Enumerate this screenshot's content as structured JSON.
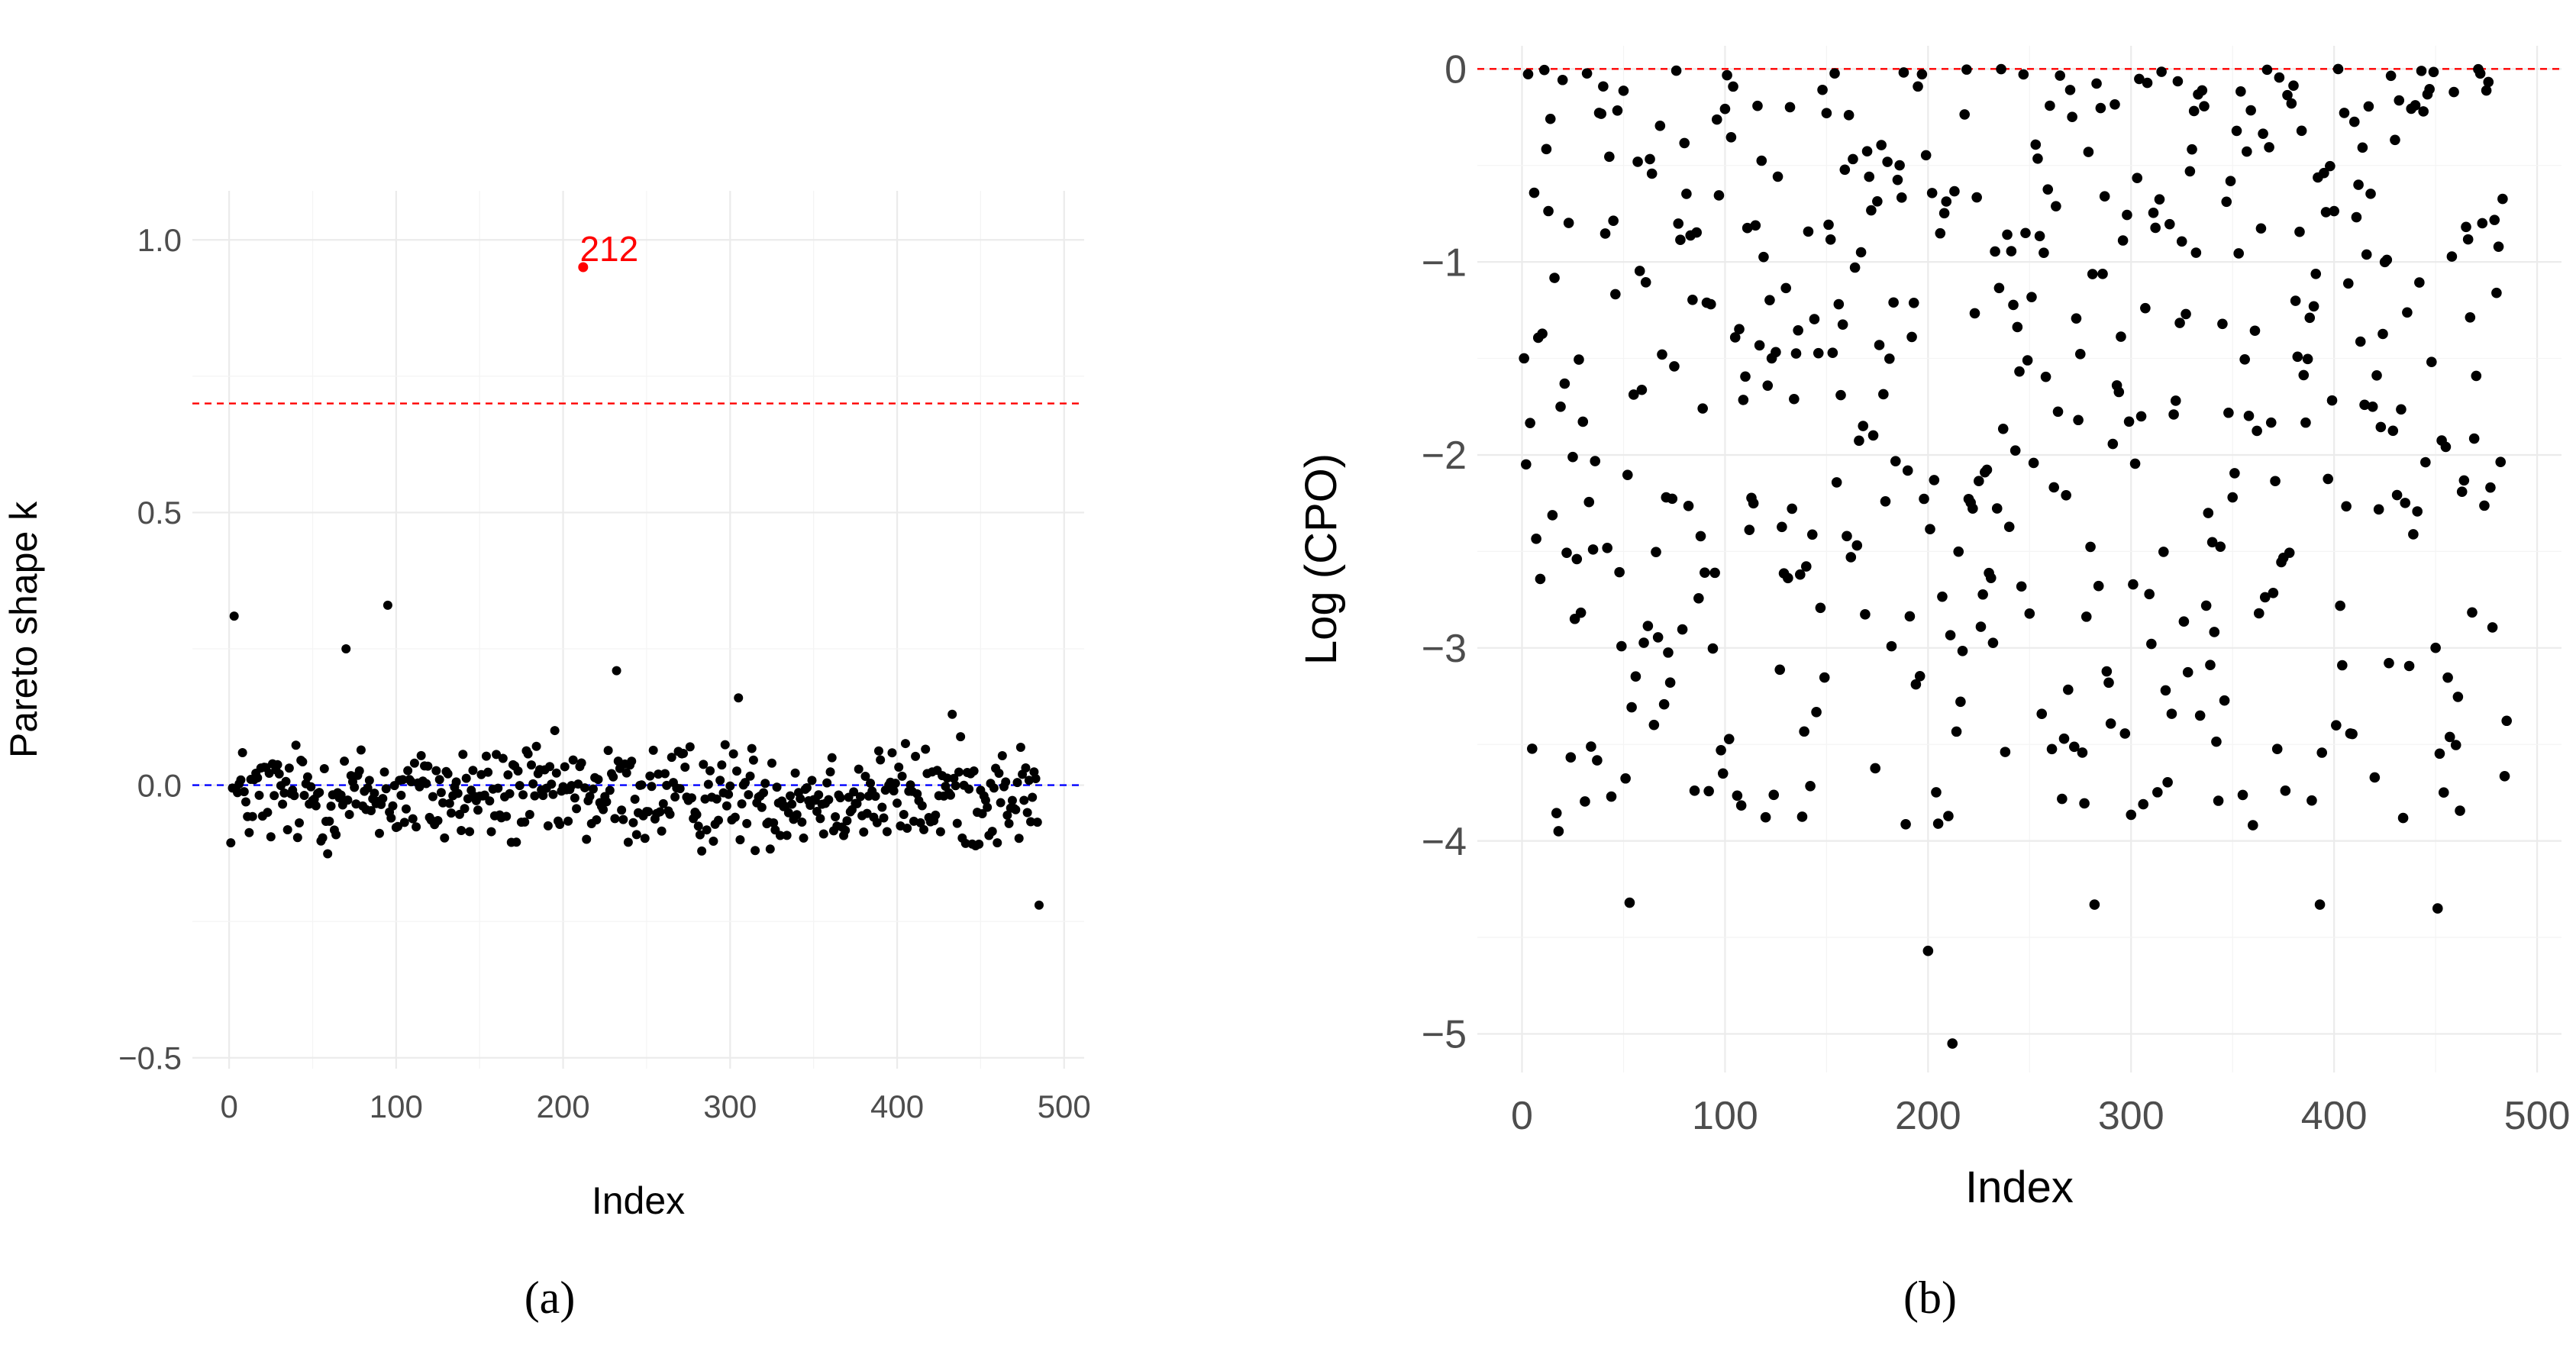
{
  "captions": {
    "a": "(a)",
    "b": "(b)"
  },
  "chart_data": [
    {
      "panel": "a",
      "type": "scatter",
      "xlabel": "Index",
      "ylabel": "Pareto shape k",
      "xlim": [
        -22,
        512
      ],
      "ylim": [
        -0.52,
        1.09
      ],
      "x_ticks": [
        "0",
        "100",
        "200",
        "300",
        "400",
        "500"
      ],
      "y_ticks": [
        "−0.5",
        "0.0",
        "0.5",
        "1.0"
      ],
      "grid": true,
      "reference_lines": [
        {
          "y": 0.7,
          "color": "#ff0000",
          "style": "dashed"
        },
        {
          "y": 0.0,
          "color": "#0000ff",
          "style": "dashed"
        }
      ],
      "highlight": {
        "x": 212,
        "y": 0.95,
        "label": "212",
        "color": "#ff0000"
      },
      "n_points": 485,
      "point_color": "#000000",
      "notable_points": [
        {
          "x": 3,
          "y": 0.31
        },
        {
          "x": 70,
          "y": 0.25
        },
        {
          "x": 95,
          "y": 0.33
        },
        {
          "x": 232,
          "y": 0.21
        },
        {
          "x": 305,
          "y": 0.16
        },
        {
          "x": 433,
          "y": 0.13
        },
        {
          "x": 485,
          "y": -0.22
        }
      ],
      "bulk_range": [
        -0.16,
        0.12
      ]
    },
    {
      "panel": "b",
      "type": "scatter",
      "xlabel": "Index",
      "ylabel": "Log (CPO)",
      "xlim": [
        -22,
        512
      ],
      "ylim": [
        -5.2,
        0.12
      ],
      "x_ticks": [
        "0",
        "100",
        "200",
        "300",
        "400",
        "500"
      ],
      "y_ticks": [
        "−5",
        "−4",
        "−3",
        "−2",
        "−1",
        "0"
      ],
      "grid": true,
      "reference_lines": [
        {
          "y": 0.0,
          "color": "#ff0000",
          "style": "dashed"
        }
      ],
      "n_points": 485,
      "point_color": "#000000",
      "notable_points": [
        {
          "x": 18,
          "y": -3.95
        },
        {
          "x": 53,
          "y": -4.32
        },
        {
          "x": 98,
          "y": -3.53
        },
        {
          "x": 200,
          "y": -4.57
        },
        {
          "x": 212,
          "y": -5.05
        },
        {
          "x": 282,
          "y": -4.33
        },
        {
          "x": 393,
          "y": -4.33
        },
        {
          "x": 451,
          "y": -4.35
        }
      ],
      "bulk_range": [
        -4.0,
        0.0
      ]
    }
  ]
}
